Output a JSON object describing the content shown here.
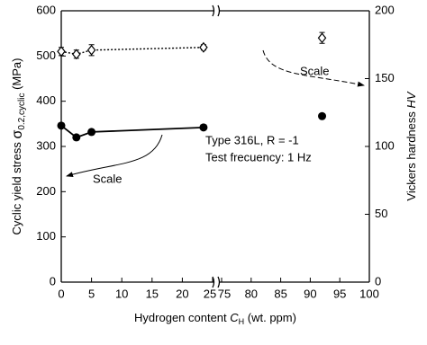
{
  "chart_data": {
    "type": "line",
    "y_label": {
      "text": "Cyclic yield stress ",
      "symbol": "σ",
      "sub": "0.2,cyclic",
      "unit": " (MPa)"
    },
    "y2_label": {
      "text": "Vickers hardness ",
      "symbol": "HV"
    },
    "x_label": {
      "text": "Hydrogen content ",
      "symbol": "C",
      "sub": "H",
      "unit": " (wt. ppm)"
    },
    "x_segments": [
      {
        "xlim": [
          0,
          25
        ],
        "xticks": [
          0,
          5,
          10,
          15,
          20,
          25
        ]
      },
      {
        "xlim": [
          75,
          100
        ],
        "xticks": [
          75,
          80,
          85,
          90,
          95,
          100
        ]
      }
    ],
    "ylim": [
      0,
      600
    ],
    "yticks": [
      0,
      100,
      200,
      300,
      400,
      500,
      600
    ],
    "y2lim": [
      0,
      200
    ],
    "y2ticks": [
      0,
      50,
      100,
      150,
      200
    ],
    "series": [
      {
        "x": [
          0,
          2.5,
          5,
          23.5,
          92
        ],
        "values": [
          346,
          320,
          332,
          342,
          367
        ],
        "marker": "filled-circle",
        "line": "solid"
      },
      {
        "x": [
          0,
          2.5,
          5,
          23.5,
          92
        ],
        "values": [
          170,
          168,
          171,
          173,
          180
        ],
        "errors": [
          3,
          3,
          4,
          2,
          4
        ],
        "axis": "y2",
        "marker": "open-diamond",
        "line": "dotted"
      }
    ],
    "annotations": [
      "Type 316L, R = -1",
      "Test frecuency: 1 Hz",
      "Scale",
      "Scale"
    ]
  }
}
